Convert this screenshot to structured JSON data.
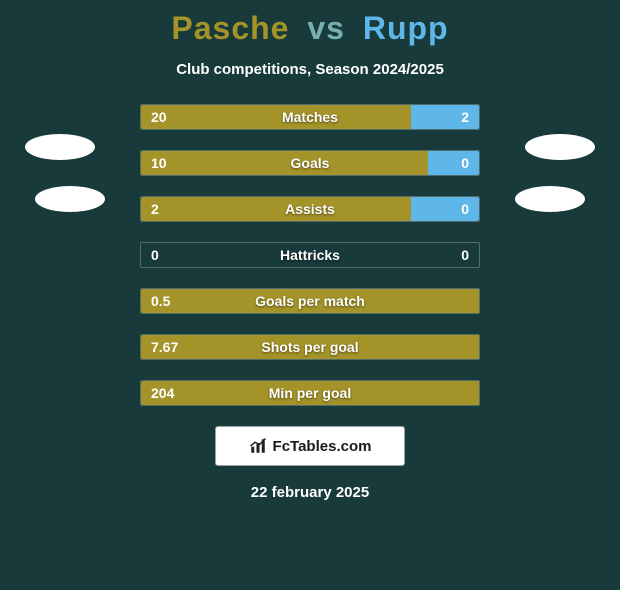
{
  "background_color": "#183a3a",
  "title": {
    "player1": "Pasche",
    "vs": "vs",
    "player2": "Rupp",
    "fontsize": 32,
    "color_p1": "#a39329",
    "color_vs": "#76b0b0",
    "color_p2": "#5fb6e8"
  },
  "subtitle": "Club competitions, Season 2024/2025",
  "bar_colors": {
    "left": "#a39329",
    "right": "#5fb6e8"
  },
  "stats": [
    {
      "label": "Matches",
      "left_val": "20",
      "right_val": "2",
      "left_pct": 80,
      "right_pct": 20
    },
    {
      "label": "Goals",
      "left_val": "10",
      "right_val": "0",
      "left_pct": 85,
      "right_pct": 15
    },
    {
      "label": "Assists",
      "left_val": "2",
      "right_val": "0",
      "left_pct": 80,
      "right_pct": 20
    },
    {
      "label": "Hattricks",
      "left_val": "0",
      "right_val": "0",
      "left_pct": 0,
      "right_pct": 0
    },
    {
      "label": "Goals per match",
      "left_val": "0.5",
      "right_val": "",
      "left_pct": 100,
      "right_pct": 0
    },
    {
      "label": "Shots per goal",
      "left_val": "7.67",
      "right_val": "",
      "left_pct": 100,
      "right_pct": 0
    },
    {
      "label": "Min per goal",
      "left_val": "204",
      "right_val": "",
      "left_pct": 100,
      "right_pct": 0
    }
  ],
  "watermark": {
    "icon_name": "bar-chart-icon",
    "text": "FcTables.com"
  },
  "date": "22 february 2025"
}
